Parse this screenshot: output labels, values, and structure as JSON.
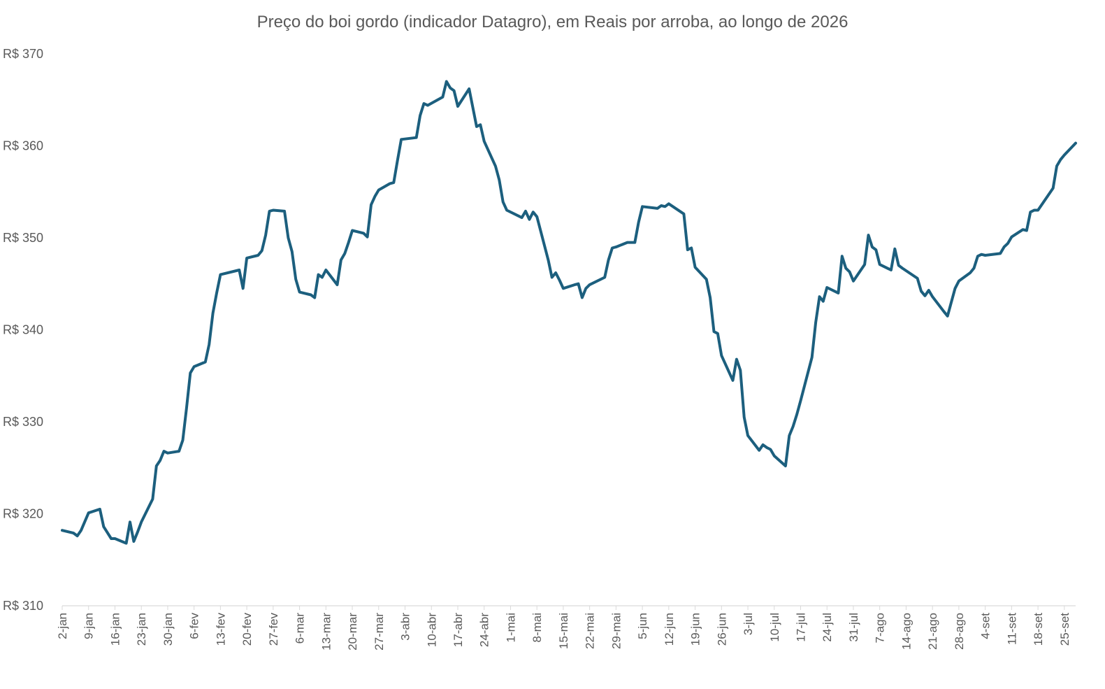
{
  "chart_data": {
    "type": "line",
    "title": "Preço do boi gordo (indicador Datagro), em Reais por arroba, ao longo de 2026",
    "xlabel": "",
    "ylabel": "",
    "ylim": [
      310,
      370
    ],
    "yticks": [
      310,
      320,
      330,
      340,
      350,
      360,
      370
    ],
    "ytick_prefix": "R$ ",
    "grid": false,
    "x_tick_labels": [
      "2-jan",
      "9-jan",
      "16-jan",
      "23-jan",
      "30-jan",
      "6-fev",
      "13-fev",
      "20-fev",
      "27-fev",
      "6-mar",
      "13-mar",
      "20-mar",
      "27-mar",
      "3-abr",
      "10-abr",
      "17-abr",
      "24-abr",
      "1-mai",
      "8-mai",
      "15-mai",
      "22-mai",
      "29-mai",
      "5-jun",
      "12-jun",
      "19-jun",
      "26-jun",
      "3-jul",
      "10-jul",
      "17-jul",
      "24-jul",
      "31-jul",
      "7-ago",
      "14-ago",
      "21-ago",
      "28-ago",
      "4-set",
      "11-set",
      "18-set",
      "25-set"
    ],
    "series": [
      {
        "color": "#1c5f7e",
        "points": [
          [
            "2026-01-02",
            318.2
          ],
          [
            "2026-01-05",
            317.9
          ],
          [
            "2026-01-06",
            317.6
          ],
          [
            "2026-01-07",
            318.2
          ],
          [
            "2026-01-09",
            320.1
          ],
          [
            "2026-01-12",
            320.5
          ],
          [
            "2026-01-13",
            318.6
          ],
          [
            "2026-01-15",
            317.3
          ],
          [
            "2026-01-16",
            317.3
          ],
          [
            "2026-01-19",
            316.8
          ],
          [
            "2026-01-20",
            319.1
          ],
          [
            "2026-01-21",
            317.0
          ],
          [
            "2026-01-22",
            318.0
          ],
          [
            "2026-01-23",
            319.1
          ],
          [
            "2026-01-26",
            321.6
          ],
          [
            "2026-01-27",
            325.2
          ],
          [
            "2026-01-28",
            325.8
          ],
          [
            "2026-01-29",
            326.8
          ],
          [
            "2026-01-30",
            326.6
          ],
          [
            "2026-02-02",
            326.8
          ],
          [
            "2026-02-03",
            328.0
          ],
          [
            "2026-02-04",
            331.5
          ],
          [
            "2026-02-05",
            335.3
          ],
          [
            "2026-02-06",
            336.0
          ],
          [
            "2026-02-09",
            336.5
          ],
          [
            "2026-02-10",
            338.4
          ],
          [
            "2026-02-11",
            341.8
          ],
          [
            "2026-02-12",
            344.0
          ],
          [
            "2026-02-13",
            346.0
          ],
          [
            "2026-02-18",
            346.5
          ],
          [
            "2026-02-19",
            344.5
          ],
          [
            "2026-02-20",
            347.8
          ],
          [
            "2026-02-23",
            348.1
          ],
          [
            "2026-02-24",
            348.6
          ],
          [
            "2026-02-25",
            350.3
          ],
          [
            "2026-02-26",
            352.9
          ],
          [
            "2026-02-27",
            353.0
          ],
          [
            "2026-03-02",
            352.9
          ],
          [
            "2026-03-03",
            350.0
          ],
          [
            "2026-03-04",
            348.5
          ],
          [
            "2026-03-05",
            345.5
          ],
          [
            "2026-03-06",
            344.1
          ],
          [
            "2026-03-09",
            343.8
          ],
          [
            "2026-03-10",
            343.5
          ],
          [
            "2026-03-11",
            346.0
          ],
          [
            "2026-03-12",
            345.7
          ],
          [
            "2026-03-13",
            346.5
          ],
          [
            "2026-03-16",
            344.9
          ],
          [
            "2026-03-17",
            347.6
          ],
          [
            "2026-03-18",
            348.3
          ],
          [
            "2026-03-19",
            349.5
          ],
          [
            "2026-03-20",
            350.8
          ],
          [
            "2026-03-23",
            350.5
          ],
          [
            "2026-03-24",
            350.1
          ],
          [
            "2026-03-25",
            353.6
          ],
          [
            "2026-03-26",
            354.5
          ],
          [
            "2026-03-27",
            355.2
          ],
          [
            "2026-03-30",
            355.9
          ],
          [
            "2026-03-31",
            356.0
          ],
          [
            "2026-04-01",
            358.4
          ],
          [
            "2026-04-02",
            360.7
          ],
          [
            "2026-04-06",
            360.9
          ],
          [
            "2026-04-07",
            363.3
          ],
          [
            "2026-04-08",
            364.6
          ],
          [
            "2026-04-09",
            364.4
          ],
          [
            "2026-04-13",
            365.3
          ],
          [
            "2026-04-14",
            367.0
          ],
          [
            "2026-04-15",
            366.3
          ],
          [
            "2026-04-16",
            366.0
          ],
          [
            "2026-04-17",
            364.3
          ],
          [
            "2026-04-20",
            366.2
          ],
          [
            "2026-04-22",
            362.1
          ],
          [
            "2026-04-23",
            362.3
          ],
          [
            "2026-04-24",
            360.5
          ],
          [
            "2026-04-27",
            357.8
          ],
          [
            "2026-04-28",
            356.3
          ],
          [
            "2026-04-29",
            353.9
          ],
          [
            "2026-04-30",
            353.0
          ],
          [
            "2026-05-04",
            352.2
          ],
          [
            "2026-05-05",
            352.9
          ],
          [
            "2026-05-06",
            352.0
          ],
          [
            "2026-05-07",
            352.8
          ],
          [
            "2026-05-08",
            352.3
          ],
          [
            "2026-05-11",
            347.6
          ],
          [
            "2026-05-12",
            345.7
          ],
          [
            "2026-05-13",
            346.2
          ],
          [
            "2026-05-14",
            345.4
          ],
          [
            "2026-05-15",
            344.5
          ],
          [
            "2026-05-18",
            344.9
          ],
          [
            "2026-05-19",
            345.0
          ],
          [
            "2026-05-20",
            343.5
          ],
          [
            "2026-05-21",
            344.5
          ],
          [
            "2026-05-22",
            344.9
          ],
          [
            "2026-05-26",
            345.7
          ],
          [
            "2026-05-27",
            347.6
          ],
          [
            "2026-05-28",
            348.9
          ],
          [
            "2026-05-29",
            349.0
          ],
          [
            "2026-06-01",
            349.5
          ],
          [
            "2026-06-03",
            349.5
          ],
          [
            "2026-06-04",
            351.7
          ],
          [
            "2026-06-05",
            353.4
          ],
          [
            "2026-06-09",
            353.2
          ],
          [
            "2026-06-10",
            353.5
          ],
          [
            "2026-06-11",
            353.4
          ],
          [
            "2026-06-12",
            353.7
          ],
          [
            "2026-06-16",
            352.6
          ],
          [
            "2026-06-17",
            348.7
          ],
          [
            "2026-06-18",
            348.9
          ],
          [
            "2026-06-19",
            346.8
          ],
          [
            "2026-06-22",
            345.5
          ],
          [
            "2026-06-23",
            343.5
          ],
          [
            "2026-06-24",
            339.8
          ],
          [
            "2026-06-25",
            339.6
          ],
          [
            "2026-06-26",
            337.2
          ],
          [
            "2026-06-29",
            334.5
          ],
          [
            "2026-06-30",
            336.8
          ],
          [
            "2026-07-01",
            335.6
          ],
          [
            "2026-07-02",
            330.5
          ],
          [
            "2026-07-03",
            328.5
          ],
          [
            "2026-07-06",
            326.9
          ],
          [
            "2026-07-07",
            327.5
          ],
          [
            "2026-07-08",
            327.2
          ],
          [
            "2026-07-09",
            327.0
          ],
          [
            "2026-07-10",
            326.3
          ],
          [
            "2026-07-13",
            325.2
          ],
          [
            "2026-07-14",
            328.5
          ],
          [
            "2026-07-15",
            329.5
          ],
          [
            "2026-07-16",
            330.8
          ],
          [
            "2026-07-17",
            332.3
          ],
          [
            "2026-07-20",
            337.0
          ],
          [
            "2026-07-21",
            340.8
          ],
          [
            "2026-07-22",
            343.6
          ],
          [
            "2026-07-23",
            343.1
          ],
          [
            "2026-07-24",
            344.6
          ],
          [
            "2026-07-27",
            344.0
          ],
          [
            "2026-07-28",
            348.0
          ],
          [
            "2026-07-29",
            346.7
          ],
          [
            "2026-07-30",
            346.3
          ],
          [
            "2026-07-31",
            345.3
          ],
          [
            "2026-08-03",
            347.1
          ],
          [
            "2026-08-04",
            350.3
          ],
          [
            "2026-08-05",
            349.0
          ],
          [
            "2026-08-06",
            348.7
          ],
          [
            "2026-08-07",
            347.1
          ],
          [
            "2026-08-10",
            346.5
          ],
          [
            "2026-08-11",
            348.8
          ],
          [
            "2026-08-12",
            347.0
          ],
          [
            "2026-08-13",
            346.7
          ],
          [
            "2026-08-17",
            345.6
          ],
          [
            "2026-08-18",
            344.2
          ],
          [
            "2026-08-19",
            343.7
          ],
          [
            "2026-08-20",
            344.3
          ],
          [
            "2026-08-21",
            343.6
          ],
          [
            "2026-08-24",
            342.0
          ],
          [
            "2026-08-25",
            341.5
          ],
          [
            "2026-08-26",
            343.0
          ],
          [
            "2026-08-27",
            344.5
          ],
          [
            "2026-08-28",
            345.3
          ],
          [
            "2026-08-31",
            346.2
          ],
          [
            "2026-09-01",
            346.7
          ],
          [
            "2026-09-02",
            348.0
          ],
          [
            "2026-09-03",
            348.2
          ],
          [
            "2026-09-04",
            348.1
          ],
          [
            "2026-09-08",
            348.3
          ],
          [
            "2026-09-09",
            349.0
          ],
          [
            "2026-09-10",
            349.4
          ],
          [
            "2026-09-11",
            350.1
          ],
          [
            "2026-09-14",
            350.9
          ],
          [
            "2026-09-15",
            350.8
          ],
          [
            "2026-09-16",
            352.8
          ],
          [
            "2026-09-17",
            353.0
          ],
          [
            "2026-09-18",
            353.0
          ],
          [
            "2026-09-21",
            354.8
          ],
          [
            "2026-09-22",
            355.4
          ],
          [
            "2026-09-23",
            357.8
          ],
          [
            "2026-09-24",
            358.5
          ],
          [
            "2026-09-25",
            359.0
          ],
          [
            "2026-09-28",
            360.3
          ]
        ]
      }
    ]
  }
}
